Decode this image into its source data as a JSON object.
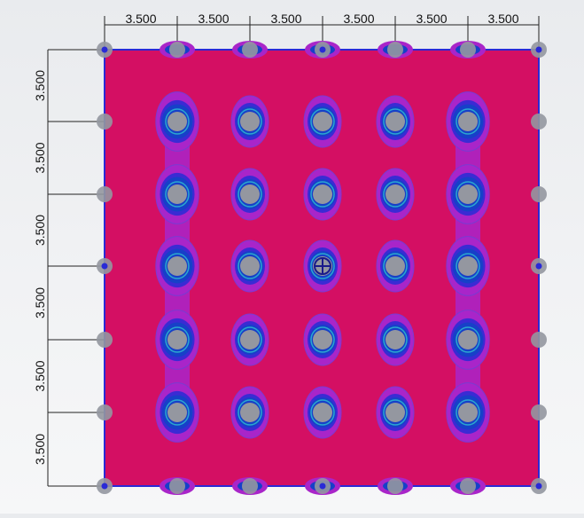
{
  "top_dimensions": [
    "3.500",
    "3.500",
    "3.500",
    "3.500",
    "3.500",
    "3.500"
  ],
  "left_dimensions": [
    "3.500",
    "3.500",
    "3.500",
    "3.500",
    "3.500",
    "3.500"
  ],
  "colors": {
    "slab_fill": "#d40f63",
    "slab_edge": "#2a2ad6",
    "contour_outer": "#a925c9",
    "contour_mid": "#3a2bd4",
    "contour_inner": "#1740c8",
    "contour_core": "#2aa7cf",
    "column_gray": "#9497a0",
    "dim_line": "#222222"
  }
}
